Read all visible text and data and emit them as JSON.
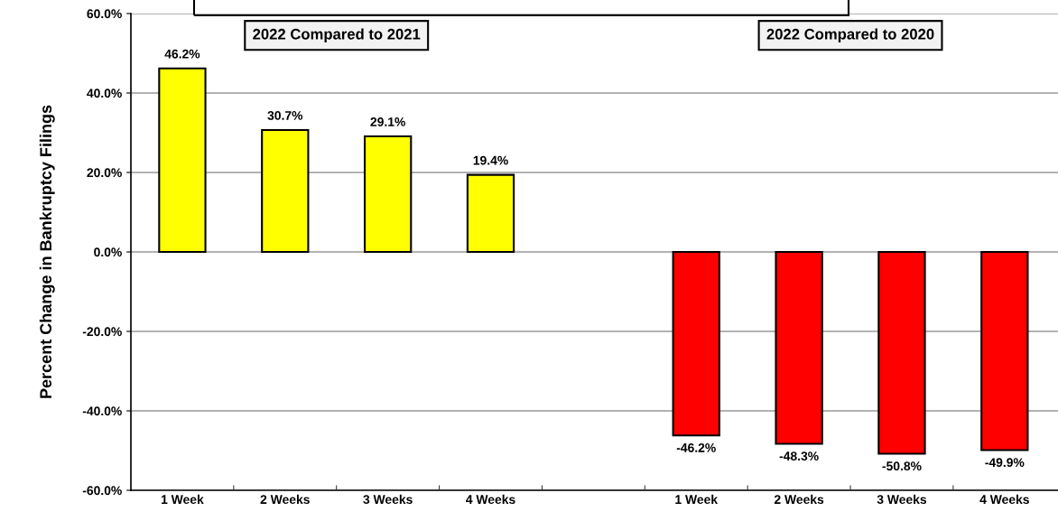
{
  "chart_data": {
    "type": "bar",
    "ylabel": "Percent Change in Bankruptcy Filings",
    "categories": [
      "1 Week",
      "2 Weeks",
      "3 Weeks",
      "4 Weeks",
      null,
      "1 Week",
      "2 Weeks",
      "3 Weeks",
      "4 Weeks"
    ],
    "series": [
      {
        "color": "#ffff00",
        "values": [
          46.2,
          30.7,
          29.1,
          19.4,
          null,
          null,
          null,
          null,
          null
        ],
        "value_labels": [
          "46.2%",
          "30.7%",
          "29.1%",
          "19.4%",
          null,
          null,
          null,
          null,
          null
        ]
      },
      {
        "color": "#ff0000",
        "values": [
          null,
          null,
          null,
          null,
          null,
          -46.2,
          -48.3,
          -50.8,
          -49.9
        ],
        "value_labels": [
          null,
          null,
          null,
          null,
          null,
          "-46.2%",
          "-48.3%",
          "-50.8%",
          "-49.9%"
        ]
      }
    ],
    "ylim": [
      -60,
      60
    ],
    "yticks": [
      {
        "value": -60,
        "label": "-60.0%"
      },
      {
        "value": -40,
        "label": "-40.0%"
      },
      {
        "value": -20,
        "label": "-20.0%"
      },
      {
        "value": 0,
        "label": "0.0%"
      },
      {
        "value": 20,
        "label": "20.0%"
      },
      {
        "value": 40,
        "label": "40.0%"
      },
      {
        "value": 60,
        "label": "60.0%"
      }
    ],
    "grid": "y",
    "annotations": [
      "2022 Compared to 2021",
      "2022 Compared to 2020"
    ]
  }
}
